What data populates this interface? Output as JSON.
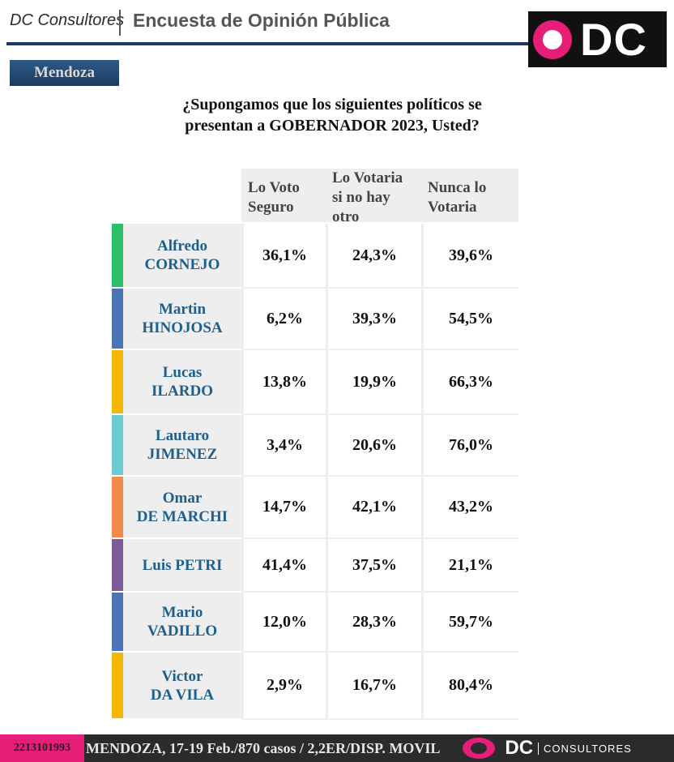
{
  "header": {
    "brand": "DC Consultores",
    "title": "Encuesta de Opinión Pública",
    "logo_text": "DC"
  },
  "region": "Mendoza",
  "question": {
    "line1": "¿Supongamos que los siguientes políticos se",
    "line2": "presentan a GOBERNADOR 2023, Usted?"
  },
  "columns": [
    "Lo Voto Seguro",
    "Lo Votaria si no hay otro",
    "Nunca lo Votaria"
  ],
  "candidates": [
    {
      "first": "Alfredo",
      "last": "CORNEJO",
      "color": "#2bbf6a",
      "values": [
        "36,1%",
        "24,3%",
        "39,6%"
      ]
    },
    {
      "first": "Martin",
      "last": "HINOJOSA",
      "color": "#4a74b4",
      "values": [
        "6,2%",
        "39,3%",
        "54,5%"
      ]
    },
    {
      "first": "Lucas",
      "last": "ILARDO",
      "color": "#f5b800",
      "values": [
        "13,8%",
        "19,9%",
        "66,3%"
      ]
    },
    {
      "first": "Lautaro",
      "last": "JIMENEZ",
      "color": "#6ccbd2",
      "values": [
        "3,4%",
        "20,6%",
        "76,0%"
      ]
    },
    {
      "first": "Omar",
      "last": "DE MARCHI",
      "color": "#f28a4e",
      "values": [
        "14,7%",
        "42,1%",
        "43,2%"
      ]
    },
    {
      "first": "Luis PETRI",
      "last": "",
      "color": "#7b5c99",
      "values": [
        "41,4%",
        "37,5%",
        "21,1%"
      ]
    },
    {
      "first": "Mario",
      "last": "VADILLO",
      "color": "#4a74b4",
      "values": [
        "12,0%",
        "28,3%",
        "59,7%"
      ]
    },
    {
      "first": "Victor",
      "last": "DA VILA",
      "color": "#f5b800",
      "values": [
        "2,9%",
        "16,7%",
        "80,4%"
      ]
    }
  ],
  "footer": {
    "phone": "2213101993",
    "info": "MENDOZA, 17-19 Feb./870 casos /  2,2ER/DISP. MOVIL",
    "brand": "DC",
    "brand_sub": "CONSULTORES"
  }
}
